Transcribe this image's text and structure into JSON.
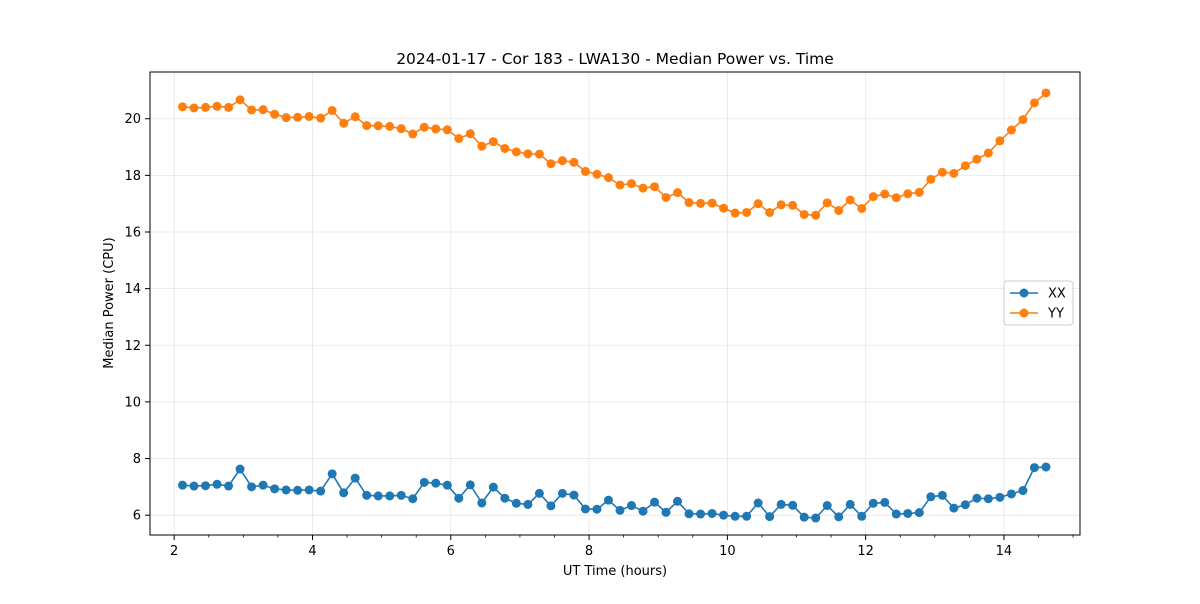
{
  "chart_data": {
    "type": "line",
    "title": "2024-01-17 - Cor 183 - LWA130 - Median Power vs. Time",
    "xlabel": "UT Time (hours)",
    "ylabel": "Median Power (CPU)",
    "xlim": [
      1.65,
      15.1
    ],
    "ylim": [
      5.3,
      21.65
    ],
    "xticks": [
      2,
      4,
      6,
      8,
      10,
      12,
      14
    ],
    "xtick_labels": [
      "2",
      "4",
      "6",
      "8",
      "10",
      "12",
      "14"
    ],
    "yticks": [
      6,
      8,
      10,
      12,
      14,
      16,
      18,
      20
    ],
    "ytick_labels": [
      "6",
      "8",
      "10",
      "12",
      "14",
      "16",
      "18",
      "20"
    ],
    "grid": true,
    "legend_position": "center-right",
    "x_start": 2.12,
    "x_step": 0.1665,
    "series": [
      {
        "name": "XX",
        "color": "#1f77b4",
        "marker": "circle",
        "values": [
          7.06,
          7.03,
          7.04,
          7.09,
          7.03,
          7.63,
          7.0,
          7.06,
          6.93,
          6.89,
          6.88,
          6.89,
          6.85,
          7.46,
          6.79,
          7.31,
          6.7,
          6.68,
          6.68,
          6.7,
          6.58,
          7.16,
          7.13,
          7.06,
          6.6,
          7.07,
          6.43,
          6.99,
          6.6,
          6.42,
          6.38,
          6.77,
          6.33,
          6.77,
          6.71,
          6.22,
          6.21,
          6.53,
          6.17,
          6.34,
          6.14,
          6.46,
          6.1,
          6.49,
          6.05,
          6.04,
          6.06,
          6.0,
          5.96,
          5.96,
          6.43,
          5.95,
          6.38,
          6.35,
          5.93,
          5.9,
          6.34,
          5.94,
          6.38,
          5.96,
          6.42,
          6.45,
          6.04,
          6.06,
          6.09,
          6.65,
          6.7,
          6.25,
          6.37,
          6.6,
          6.58,
          6.63,
          6.75,
          6.87,
          7.68,
          7.7
        ]
      },
      {
        "name": "YY",
        "color": "#ff7f0e",
        "marker": "circle",
        "values": [
          20.42,
          20.38,
          20.4,
          20.44,
          20.4,
          20.67,
          20.31,
          20.32,
          20.16,
          20.04,
          20.05,
          20.08,
          20.02,
          20.29,
          19.84,
          20.07,
          19.76,
          19.75,
          19.73,
          19.65,
          19.46,
          19.7,
          19.64,
          19.61,
          19.3,
          19.47,
          19.03,
          19.19,
          18.95,
          18.83,
          18.76,
          18.75,
          18.41,
          18.52,
          18.46,
          18.14,
          18.04,
          17.92,
          17.66,
          17.71,
          17.55,
          17.6,
          17.22,
          17.39,
          17.04,
          17.01,
          17.02,
          16.84,
          16.67,
          16.69,
          17.0,
          16.69,
          16.96,
          16.94,
          16.62,
          16.59,
          17.03,
          16.76,
          17.13,
          16.83,
          17.25,
          17.34,
          17.21,
          17.35,
          17.4,
          17.86,
          18.11,
          18.07,
          18.34,
          18.57,
          18.79,
          19.22,
          19.6,
          19.97,
          20.56,
          20.91
        ]
      }
    ]
  }
}
